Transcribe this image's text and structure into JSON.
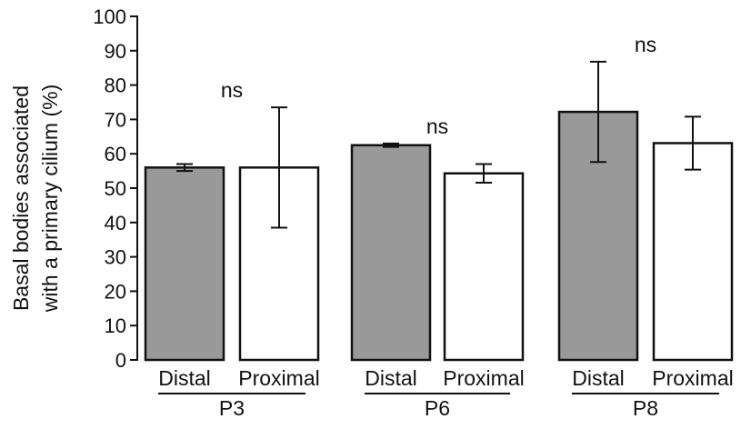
{
  "chart_data": {
    "type": "bar",
    "ylabel_lines": [
      "Basal bodies associated",
      "with a primary cilium (%)"
    ],
    "ylim": [
      0,
      100
    ],
    "yticks": [
      0,
      10,
      20,
      30,
      40,
      50,
      60,
      70,
      80,
      90,
      100
    ],
    "grid": false,
    "groups": [
      {
        "name": "P3",
        "significance": "ns",
        "bars": [
          {
            "name": "Distal",
            "value": 56,
            "error": 1,
            "fill": "#999999"
          },
          {
            "name": "Proximal",
            "value": 56,
            "error": 17.5,
            "fill": "#ffffff"
          }
        ]
      },
      {
        "name": "P6",
        "significance": "ns",
        "bars": [
          {
            "name": "Distal",
            "value": 62.5,
            "error": 0.5,
            "fill": "#999999"
          },
          {
            "name": "Proximal",
            "value": 54.3,
            "error": 2.7,
            "fill": "#ffffff"
          }
        ]
      },
      {
        "name": "P8",
        "significance": "ns",
        "bars": [
          {
            "name": "Distal",
            "value": 72.2,
            "error": 14.6,
            "fill": "#999999"
          },
          {
            "name": "Proximal",
            "value": 63.1,
            "error": 7.7,
            "fill": "#ffffff"
          }
        ]
      }
    ]
  }
}
